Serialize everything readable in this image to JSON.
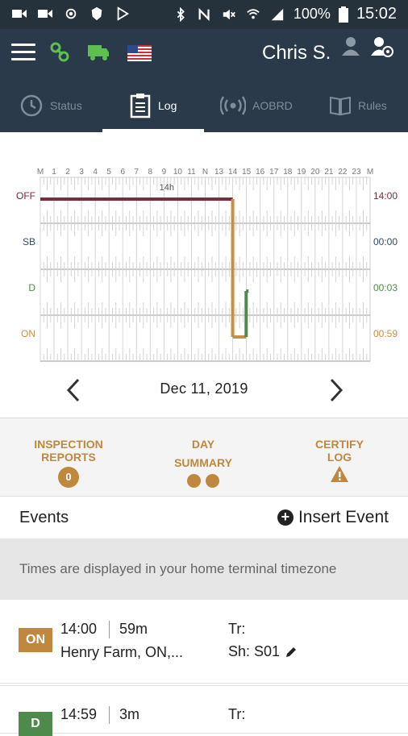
{
  "status_bar": {
    "battery": "100%",
    "time": "15:02"
  },
  "header": {
    "user_name": "Chris S."
  },
  "tabs": [
    {
      "label": "Status",
      "icon": "clock-icon"
    },
    {
      "label": "Log",
      "icon": "clipboard-icon"
    },
    {
      "label": "AOBRD",
      "icon": "broadcast-icon"
    },
    {
      "label": "Rules",
      "icon": "book-icon"
    }
  ],
  "chart_data": {
    "type": "line",
    "hour_labels": [
      "M",
      "1",
      "2",
      "3",
      "4",
      "5",
      "6",
      "7",
      "8",
      "9",
      "10",
      "11",
      "N",
      "13",
      "14",
      "15",
      "16",
      "17",
      "18",
      "19",
      "20",
      "21",
      "22",
      "23",
      "M"
    ],
    "rows": [
      "OFF",
      "SB",
      "D",
      "ON"
    ],
    "totals": [
      "14:00",
      "00:00",
      "00:03",
      "00:59"
    ],
    "annotation": "14h",
    "segments": [
      {
        "status": "OFF",
        "start": 0,
        "end": 14.0
      },
      {
        "status": "ON",
        "start": 14.0,
        "end": 14.98
      },
      {
        "status": "D",
        "start": 14.98,
        "end": 15.03
      }
    ],
    "colors": {
      "OFF": "#7a2d3b",
      "SB": "#2f4a6b",
      "D": "#4f8a4d",
      "ON": "#c8903f"
    }
  },
  "date_nav": {
    "date": "Dec 11, 2019"
  },
  "summary": {
    "inspection_line1": "INSPECTION",
    "inspection_line2": "REPORTS",
    "inspection_count": "0",
    "day_line1": "DAY",
    "day_line2": "SUMMARY",
    "certify_line1": "CERTIFY",
    "certify_line2": "LOG",
    "accent_color": "#c0873e"
  },
  "events": {
    "title": "Events",
    "insert_label": "Insert Event",
    "timezone_notice": "Times are displayed in your home terminal timezone",
    "rows": [
      {
        "status": "ON",
        "time": "14:00",
        "duration": "59m",
        "location": "Henry Farm, ON,...",
        "tr": "Tr:",
        "sh": "Sh: S01",
        "color": "#c0873e"
      },
      {
        "status": "D",
        "time": "14:59",
        "duration": "3m",
        "location": "",
        "tr": "Tr:",
        "sh": "",
        "color": "#4f8a4d"
      }
    ]
  }
}
